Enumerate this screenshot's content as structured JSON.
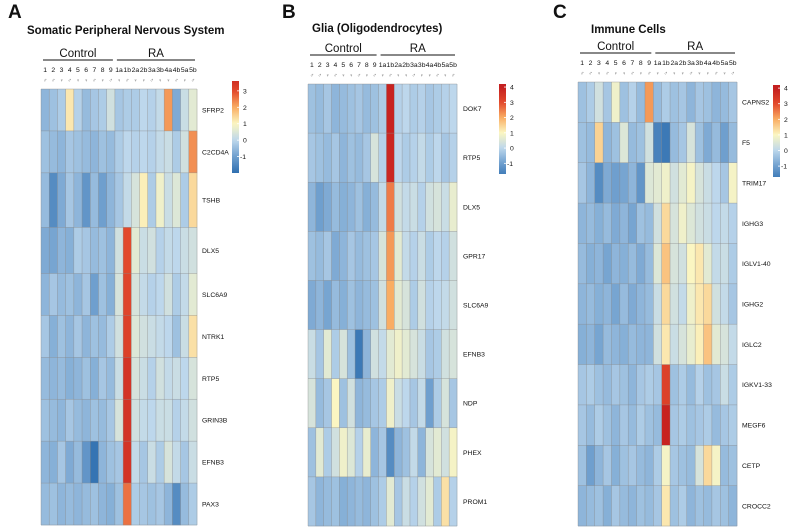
{
  "palette": {
    "stops": [
      {
        "v": -2,
        "c": "#2f6fb0"
      },
      {
        "v": -1,
        "c": "#6f9fce"
      },
      {
        "v": 0,
        "c": "#bdd7ec"
      },
      {
        "v": 1,
        "c": "#fbf6c2"
      },
      {
        "v": 2,
        "c": "#f9ad63"
      },
      {
        "v": 3,
        "c": "#e2492c"
      },
      {
        "v": 4,
        "c": "#c41f1f"
      }
    ],
    "grid": "#8a8a8a",
    "text": "#111111"
  },
  "chart_data": [
    {
      "type": "heatmap",
      "panel_letter": "A",
      "title": "Somatic Peripheral Nervous System",
      "group_labels": [
        "Control",
        "RA"
      ],
      "group_sizes": [
        9,
        10
      ],
      "columns": [
        "1",
        "2",
        "3",
        "4",
        "5",
        "6",
        "7",
        "8",
        "9",
        "1a",
        "1b",
        "2a",
        "2b",
        "3a",
        "3b",
        "4a",
        "4b",
        "5a",
        "5b"
      ],
      "sex_labels": [
        "♂",
        "♂",
        "♀",
        "♂",
        "♀",
        "♀",
        "♂",
        "♀",
        "♂",
        "♀",
        "♂",
        "♀",
        "♀",
        "♂",
        "♀",
        "♀",
        "♂",
        "♀",
        "♂"
      ],
      "legend_ticks": [
        3,
        2,
        1,
        0,
        -1
      ],
      "legend_range": [
        -2,
        3.6
      ],
      "rows": [
        "SFRP2",
        "C2CD4A",
        "TSHB",
        "DLX5",
        "SLC6A9",
        "NTRK1",
        "RTP5",
        "GRIN3B",
        "EFNB3",
        "PAX3"
      ],
      "row_weights": [
        1,
        1,
        1.3,
        1.1,
        1,
        1,
        1,
        1,
        1,
        1
      ],
      "values": [
        [
          -0.6,
          -0.4,
          -0.2,
          1.2,
          -0.1,
          -0.5,
          -0.3,
          -0.2,
          0.3,
          -0.3,
          -0.2,
          -0.2,
          0.0,
          -0.1,
          0.1,
          2.2,
          -0.8,
          0.2,
          0.6
        ],
        [
          -0.4,
          -0.5,
          -0.6,
          -0.3,
          -0.4,
          -0.5,
          -0.6,
          -0.4,
          -0.5,
          -0.2,
          0.0,
          -0.1,
          0.0,
          -0.1,
          0.1,
          0.2,
          -0.2,
          0.3,
          2.3
        ],
        [
          -0.5,
          -1.4,
          -0.8,
          -0.3,
          -0.6,
          -1.2,
          -0.5,
          -1.0,
          -0.6,
          -0.3,
          0.1,
          0.4,
          1.1,
          -0.2,
          0.8,
          0.2,
          0.5,
          -0.2,
          1.4
        ],
        [
          -0.8,
          -0.9,
          -0.6,
          -0.7,
          -0.2,
          -0.3,
          -0.5,
          -0.4,
          -0.6,
          0.3,
          3.0,
          0.6,
          0.2,
          0.3,
          -0.1,
          0.1,
          0.0,
          0.2,
          0.3
        ],
        [
          -0.6,
          -0.3,
          -0.5,
          -0.4,
          -0.6,
          -0.3,
          -1.0,
          -0.4,
          -0.7,
          0.4,
          3.1,
          0.4,
          0.1,
          -0.1,
          0.0,
          0.3,
          -0.2,
          0.1,
          0.6
        ],
        [
          -0.3,
          -0.7,
          -0.4,
          -0.6,
          -0.3,
          -0.6,
          -0.4,
          -0.5,
          -0.2,
          0.3,
          3.2,
          0.5,
          0.3,
          0.2,
          0.1,
          0.0,
          -0.4,
          0.2,
          1.3
        ],
        [
          -0.5,
          -0.6,
          -0.5,
          -0.7,
          -0.6,
          -0.4,
          -0.7,
          -0.3,
          -0.5,
          0.2,
          3.5,
          0.4,
          0.2,
          -0.1,
          0.3,
          0.1,
          0.2,
          0.0,
          0.4
        ],
        [
          -0.4,
          -0.5,
          -0.6,
          -0.3,
          -0.5,
          -0.6,
          -0.4,
          -0.5,
          -0.3,
          0.4,
          3.5,
          0.3,
          0.1,
          0.0,
          0.2,
          0.2,
          -0.1,
          0.1,
          0.3
        ],
        [
          -0.6,
          -0.7,
          -0.3,
          -0.8,
          -0.5,
          -1.2,
          -1.9,
          -0.6,
          -0.4,
          -0.3,
          3.5,
          0.1,
          -0.3,
          0.2,
          -0.2,
          0.4,
          0.1,
          -0.3,
          0.2
        ],
        [
          -0.5,
          -0.4,
          -0.6,
          -0.5,
          -0.6,
          -0.5,
          -0.4,
          -0.6,
          -0.7,
          -0.4,
          2.6,
          -0.2,
          -0.3,
          -0.4,
          -0.3,
          -0.6,
          -1.4,
          -0.5,
          -0.2
        ]
      ]
    },
    {
      "type": "heatmap",
      "panel_letter": "B",
      "title": "Glia (Oligodendrocytes)",
      "group_labels": [
        "Control",
        "RA"
      ],
      "group_sizes": [
        9,
        10
      ],
      "columns": [
        "1",
        "2",
        "3",
        "4",
        "5",
        "6",
        "7",
        "8",
        "9",
        "1a",
        "1b",
        "2a",
        "2b",
        "3a",
        "3b",
        "4a",
        "4b",
        "5a",
        "5b"
      ],
      "sex_labels": [
        "♂",
        "♂",
        "♀",
        "♂",
        "♀",
        "♀",
        "♂",
        "♀",
        "♂",
        "♀",
        "♂",
        "♀",
        "♀",
        "♂",
        "♀",
        "♀",
        "♂",
        "♀",
        "♂"
      ],
      "legend_ticks": [
        4,
        3,
        2,
        1,
        0,
        -1
      ],
      "legend_range": [
        -1.7,
        4.2
      ],
      "rows": [
        "DOK7",
        "RTP5",
        "DLX5",
        "GPR17",
        "SLC6A9",
        "EFNB3",
        "NDP",
        "PHEX",
        "PROM1"
      ],
      "row_weights": [
        1,
        1,
        1,
        1,
        1,
        1,
        1,
        1,
        1
      ],
      "values": [
        [
          -0.4,
          -0.5,
          -0.3,
          -0.6,
          -0.5,
          -0.4,
          -0.3,
          -0.5,
          -0.4,
          -0.2,
          3.9,
          -0.1,
          0.0,
          -0.2,
          -0.1,
          -0.3,
          -0.2,
          -0.1,
          0.0
        ],
        [
          -0.3,
          -0.4,
          -0.5,
          -0.3,
          -0.6,
          -0.4,
          -0.5,
          -0.3,
          0.4,
          -0.1,
          3.8,
          0.0,
          -0.2,
          -0.1,
          0.1,
          -0.2,
          0.0,
          -0.3,
          -0.1
        ],
        [
          -0.6,
          -1.0,
          -0.8,
          -0.5,
          -0.7,
          -0.6,
          -0.4,
          -0.7,
          -0.5,
          0.1,
          2.5,
          0.3,
          0.1,
          0.2,
          -0.1,
          0.3,
          0.4,
          0.2,
          0.7
        ],
        [
          -0.4,
          -0.5,
          -0.3,
          -0.8,
          -0.6,
          -0.3,
          -0.5,
          -0.4,
          -0.3,
          0.4,
          2.2,
          0.6,
          0.1,
          -0.1,
          0.2,
          -0.2,
          0.0,
          -0.1,
          0.3
        ],
        [
          -0.8,
          -0.6,
          -0.9,
          -0.5,
          -0.7,
          -0.4,
          -0.6,
          -0.5,
          -0.4,
          0.3,
          2.0,
          0.6,
          0.4,
          -0.2,
          0.3,
          -0.1,
          0.0,
          0.1,
          0.3
        ],
        [
          0.2,
          -0.3,
          0.6,
          -0.2,
          0.4,
          -0.4,
          -1.8,
          -0.6,
          0.3,
          0.1,
          0.6,
          0.8,
          0.6,
          0.4,
          0.2,
          -0.3,
          -0.2,
          0.3,
          0.4
        ],
        [
          0.4,
          -0.5,
          -0.3,
          1.0,
          -0.4,
          0.3,
          -0.6,
          -0.5,
          -0.3,
          -0.2,
          0.8,
          0.2,
          0.0,
          -0.3,
          0.1,
          -1.0,
          -0.2,
          0.4,
          -0.3
        ],
        [
          -0.4,
          0.6,
          -0.2,
          0.3,
          0.8,
          0.5,
          -0.1,
          0.7,
          -0.6,
          -0.3,
          -1.4,
          -0.6,
          -0.4,
          0.1,
          -0.6,
          0.4,
          0.6,
          0.3,
          0.9
        ],
        [
          -0.3,
          -0.6,
          -0.5,
          -0.4,
          -0.7,
          -0.6,
          -0.5,
          -0.6,
          -0.4,
          -0.2,
          0.6,
          -0.3,
          0.2,
          -0.1,
          0.3,
          0.6,
          -0.2,
          1.3,
          -0.1
        ]
      ]
    },
    {
      "type": "heatmap",
      "panel_letter": "C",
      "title": "Immune Cells",
      "group_labels": [
        "Control",
        "RA"
      ],
      "group_sizes": [
        9,
        10
      ],
      "columns": [
        "1",
        "2",
        "3",
        "4",
        "5",
        "6",
        "7",
        "8",
        "9",
        "1a",
        "1b",
        "2a",
        "2b",
        "3a",
        "3b",
        "4a",
        "4b",
        "5a",
        "5b"
      ],
      "sex_labels": [
        "♂",
        "♂",
        "♀",
        "♂",
        "♀",
        "♀",
        "♂",
        "♀",
        "♂",
        "♀",
        "♂",
        "♀",
        "♀",
        "♂",
        "♀",
        "♀",
        "♂",
        "♀",
        "♂"
      ],
      "legend_ticks": [
        4,
        3,
        2,
        1,
        0,
        -1
      ],
      "legend_range": [
        -1.7,
        4.2
      ],
      "rows": [
        "CAPNS2",
        "F5",
        "TRIM17",
        "IGHG3",
        "IGLV1-40",
        "IGHG2",
        "IGLC2",
        "IGKV1-33",
        "MEGF6",
        "CETP",
        "CROCC2"
      ],
      "row_weights": [
        1,
        1,
        1,
        1,
        1,
        1,
        1,
        1,
        1,
        1,
        1
      ],
      "values": [
        [
          -0.4,
          -0.2,
          0.3,
          -0.3,
          0.8,
          -0.4,
          -0.1,
          -0.5,
          2.2,
          -0.5,
          -0.2,
          -0.4,
          -0.3,
          -0.6,
          -0.3,
          -0.4,
          -0.6,
          -0.5,
          -0.3
        ],
        [
          -0.4,
          -0.5,
          1.5,
          -0.6,
          -0.4,
          0.5,
          -0.5,
          -0.4,
          0.3,
          -1.6,
          -1.8,
          -0.5,
          -0.3,
          0.4,
          -0.4,
          -0.8,
          -0.5,
          -1.0,
          -0.5
        ],
        [
          -0.3,
          -0.6,
          -1.4,
          -0.8,
          -1.0,
          -0.9,
          -0.6,
          -1.2,
          0.5,
          0.6,
          0.8,
          0.3,
          0.6,
          0.9,
          0.4,
          0.2,
          0.0,
          -0.3,
          0.9
        ],
        [
          -0.6,
          -0.5,
          -0.7,
          -0.5,
          -0.8,
          -0.6,
          -0.9,
          -0.4,
          -0.5,
          0.3,
          1.4,
          0.4,
          0.8,
          0.5,
          0.3,
          0.2,
          0.0,
          0.1,
          -0.1
        ],
        [
          -0.5,
          -0.7,
          -0.6,
          -0.9,
          -0.6,
          -0.7,
          -0.5,
          -0.8,
          -0.5,
          0.5,
          1.7,
          0.4,
          0.3,
          1.0,
          1.2,
          0.6,
          0.1,
          0.2,
          -0.2
        ],
        [
          -0.6,
          -0.5,
          -0.7,
          -0.6,
          -0.9,
          -0.5,
          -0.8,
          -0.6,
          -0.5,
          0.2,
          1.4,
          0.3,
          0.1,
          0.8,
          1.2,
          1.4,
          0.3,
          0.1,
          -0.3
        ],
        [
          -0.7,
          -0.6,
          -0.9,
          -0.5,
          -0.6,
          -0.7,
          -0.5,
          -0.6,
          -0.6,
          0.3,
          1.2,
          0.2,
          0.4,
          0.7,
          1.1,
          1.7,
          0.6,
          0.4,
          0.1
        ],
        [
          -0.3,
          -0.2,
          -0.4,
          -0.5,
          -0.3,
          -0.4,
          -0.6,
          -0.3,
          -0.2,
          -0.3,
          3.2,
          -0.4,
          -0.2,
          -0.5,
          -0.1,
          -0.4,
          -0.3,
          0.2,
          -0.2
        ],
        [
          -0.3,
          -0.5,
          -0.2,
          -0.4,
          -0.6,
          -0.3,
          -0.5,
          -0.2,
          -0.4,
          -0.5,
          3.9,
          -0.3,
          -0.2,
          -0.4,
          -0.3,
          -0.2,
          -0.5,
          -0.3,
          -0.2
        ],
        [
          -0.4,
          -1.0,
          -0.6,
          -0.3,
          -0.7,
          -0.4,
          -0.3,
          -0.5,
          -0.6,
          -0.2,
          0.9,
          -0.3,
          -0.4,
          -0.5,
          0.4,
          1.4,
          0.9,
          -0.5,
          -0.4
        ],
        [
          -0.6,
          -0.5,
          -0.4,
          -0.7,
          -0.3,
          -0.5,
          -0.6,
          -0.4,
          -0.5,
          -0.3,
          1.2,
          -0.4,
          -0.2,
          -0.6,
          -0.4,
          -0.5,
          -0.3,
          -0.4,
          -0.6
        ]
      ]
    }
  ]
}
